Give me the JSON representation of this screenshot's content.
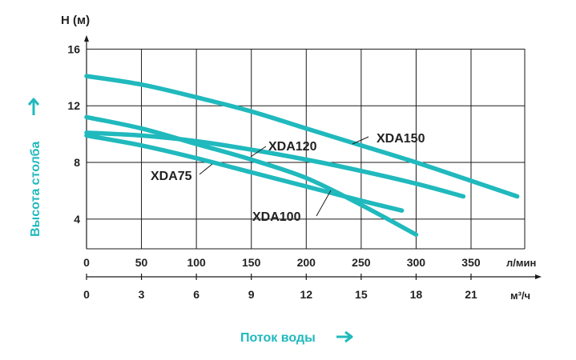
{
  "chart_data": {
    "type": "line",
    "title": "",
    "ylabel_top": "H (м)",
    "ylabel_side": "Высота столба",
    "xlabel": "Поток воды",
    "x_unit_primary": "л/мин",
    "x_unit_secondary": "м³/ч",
    "xlim": [
      0,
      400
    ],
    "ylim": [
      2,
      16
    ],
    "x_ticks": [
      "0",
      "50",
      "100",
      "150",
      "200",
      "250",
      "300",
      "350"
    ],
    "x_tick_values": [
      0,
      50,
      100,
      150,
      200,
      250,
      300,
      350
    ],
    "x2_ticks": [
      "0",
      "3",
      "6",
      "9",
      "12",
      "15",
      "18",
      "21"
    ],
    "y_ticks": [
      "4",
      "8",
      "12",
      "16"
    ],
    "y_tick_values": [
      4,
      8,
      12,
      16
    ],
    "grid": true,
    "line_color": "#20b9bd",
    "series": [
      {
        "name": "XDA150",
        "x": [
          0,
          50,
          100,
          150,
          200,
          250,
          300,
          350,
          392
        ],
        "y": [
          14.1,
          13.5,
          12.6,
          11.6,
          10.4,
          9.2,
          8.0,
          6.7,
          5.6
        ]
      },
      {
        "name": "XDA120",
        "x": [
          0,
          50,
          100,
          150,
          200,
          250,
          300,
          343
        ],
        "y": [
          10.1,
          9.9,
          9.5,
          8.9,
          8.2,
          7.4,
          6.5,
          5.6
        ]
      },
      {
        "name": "XDA100",
        "x": [
          0,
          50,
          100,
          150,
          200,
          250,
          300
        ],
        "y": [
          11.2,
          10.4,
          9.3,
          8.2,
          6.9,
          5.0,
          2.9
        ]
      },
      {
        "name": "XDA75",
        "x": [
          0,
          50,
          100,
          150,
          200,
          250,
          287
        ],
        "y": [
          9.9,
          9.2,
          8.3,
          7.3,
          6.3,
          5.3,
          4.6
        ]
      }
    ]
  }
}
